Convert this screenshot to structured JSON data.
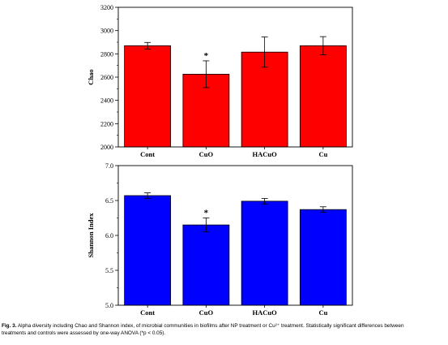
{
  "chart_data": [
    {
      "type": "bar",
      "title": "",
      "xlabel": "",
      "ylabel": "Chao",
      "categories": [
        "Cont",
        "CuO",
        "HACuO",
        "Cu"
      ],
      "values": [
        2870,
        2625,
        2815,
        2870
      ],
      "errors": [
        28,
        115,
        130,
        78
      ],
      "significance": [
        "",
        "*",
        "",
        ""
      ],
      "ylim": [
        2000,
        3200
      ],
      "yticks": [
        2000,
        2200,
        2400,
        2600,
        2800,
        3000,
        3200
      ],
      "ytick_labels": [
        "2000",
        "2200",
        "2400",
        "2600",
        "2800",
        "3000",
        "3200"
      ],
      "grid": false,
      "color": "#ff0000"
    },
    {
      "type": "bar",
      "title": "",
      "xlabel": "",
      "ylabel": "Shannon Index",
      "categories": [
        "Cont",
        "CuO",
        "HACuO",
        "Cu"
      ],
      "values": [
        6.57,
        6.15,
        6.49,
        6.37
      ],
      "errors": [
        0.04,
        0.1,
        0.04,
        0.04
      ],
      "significance": [
        "",
        "*",
        "",
        ""
      ],
      "ylim": [
        5.0,
        7.0
      ],
      "yticks": [
        5.0,
        5.5,
        6.0,
        6.5,
        7.0
      ],
      "ytick_labels": [
        "5.0",
        "5.5",
        "6.0",
        "6.5",
        "7.0"
      ],
      "grid": false,
      "color": "#0000ff"
    }
  ],
  "caption": {
    "label": "Fig. 3.",
    "line1": " Alpha diversity including Chao and Shannon index, of microbial communities in biofilms after NP treatment or Cu²⁺ treatment. Statistically significant differences between",
    "line2": "treatments and controls were assessed by one-way ANOVA (*p < 0.05)."
  }
}
